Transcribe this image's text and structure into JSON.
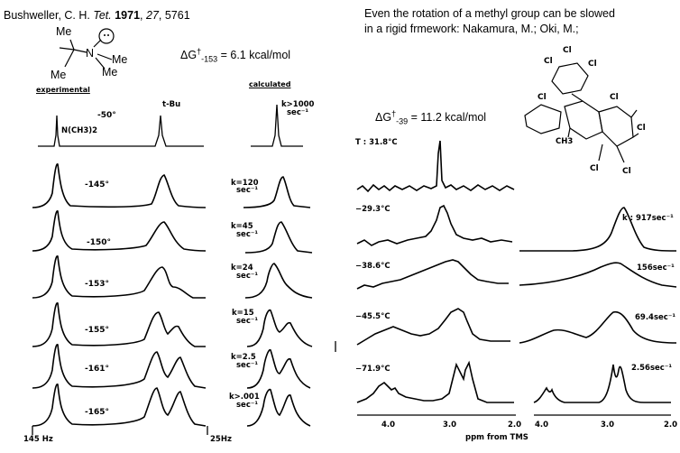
{
  "left_panel": {
    "citation": {
      "authors": "Bushweller, C. H.",
      "journal": "Tet.",
      "year": "1971",
      "volume": "27",
      "pages": "5761"
    },
    "molecule_labels": [
      "Me",
      "Me",
      "N",
      "Me",
      "Me"
    ],
    "barrier": {
      "delta": "ΔG",
      "dagger": "†",
      "subscript": "-153",
      "value": "= 6.1 kcal/mol"
    },
    "headers": {
      "experimental": "experimental",
      "calculated": "calculated"
    },
    "reference_spectrum": {
      "temperature": "-50°",
      "peak_labels": [
        "N(CH3)2",
        "t-Bu"
      ],
      "rate": "k>1000",
      "rate_unit": "sec⁻¹"
    },
    "rows": [
      {
        "temperature": "-145°",
        "rate": "k=120",
        "rate_unit": "sec⁻¹"
      },
      {
        "temperature": "-150°",
        "rate": "k=45",
        "rate_unit": "sec⁻¹"
      },
      {
        "temperature": "-153°",
        "rate": "k=24",
        "rate_unit": "sec⁻¹"
      },
      {
        "temperature": "-155°",
        "rate": "k=15",
        "rate_unit": "sec⁻¹"
      },
      {
        "temperature": "-161°",
        "rate": "k=2.5",
        "rate_unit": "sec⁻¹"
      },
      {
        "temperature": "-165°",
        "rate": "k>.001",
        "rate_unit": "sec⁻¹"
      }
    ],
    "axis": {
      "left": "145 Hz",
      "right": "25Hz"
    }
  },
  "right_panel": {
    "caption_line1": "Even the rotation of a methyl group can be slowed",
    "caption_line2": "in a rigid frmework: Nakamura, M.; Oki, M.;",
    "barrier": {
      "delta": "ΔG",
      "dagger": "†",
      "subscript": "-39",
      "value": "= 11.2 kcal/mol"
    },
    "molecule_labels": [
      "Cl",
      "Cl",
      "Cl",
      "Cl",
      "Cl",
      "Cl",
      "Cl",
      "Cl",
      "CH3"
    ],
    "rows": [
      {
        "temperature": "T : 31.8°C",
        "rate": ""
      },
      {
        "temperature": "−29.3°C",
        "rate": "k : 917sec⁻¹"
      },
      {
        "temperature": "−38.6°C",
        "rate": "156sec⁻¹"
      },
      {
        "temperature": "−45.5°C",
        "rate": "69.4sec⁻¹"
      },
      {
        "temperature": "−71.9°C",
        "rate": "2.56sec⁻¹"
      }
    ],
    "axis": {
      "ticks_left": [
        "4.0",
        "3.0",
        "2.0"
      ],
      "ticks_right": [
        "4.0",
        "3.0",
        "2.0"
      ],
      "label": "ppm from TMS"
    }
  }
}
